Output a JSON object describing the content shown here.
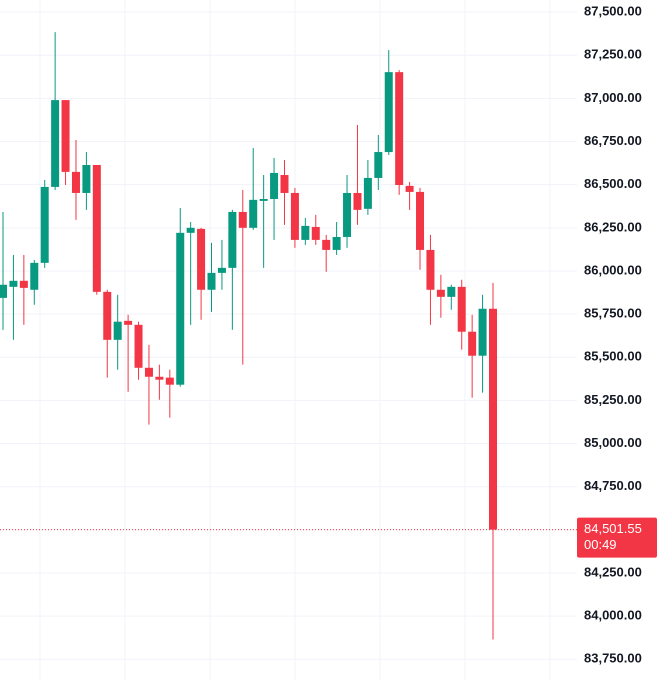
{
  "chart_data": {
    "type": "candlestick",
    "up_color": "#089981",
    "down_color": "#f23645",
    "open": [
      85844,
      85908,
      85943,
      85891,
      86047,
      86487,
      86990,
      86574,
      86452,
      86614,
      85879,
      85601,
      85711,
      85688,
      85439,
      85387,
      85382,
      85341,
      86221,
      86244,
      85891,
      85989,
      86018,
      86342,
      86250,
      86406,
      86417,
      86556,
      86452,
      86180,
      86255,
      86180,
      86122,
      86197,
      86452,
      86360,
      86539,
      86689,
      87152,
      86493,
      86458,
      86122,
      85891,
      85850,
      85908,
      85648,
      85509,
      85781
    ],
    "close": [
      85920,
      85943,
      85902,
      86047,
      86487,
      86990,
      86574,
      86452,
      86614,
      85879,
      85601,
      85706,
      85688,
      85439,
      85387,
      85370,
      85341,
      86221,
      86250,
      85891,
      85989,
      86018,
      86342,
      86250,
      86412,
      86417,
      86568,
      86452,
      86180,
      86261,
      86180,
      86122,
      86197,
      86452,
      86354,
      86539,
      86689,
      87152,
      86498,
      86458,
      86122,
      85891,
      85850,
      85908,
      85648,
      85509,
      85781,
      84501.55
    ],
    "high": [
      86342,
      86093,
      86093,
      86064,
      86527,
      87384,
      86990,
      86759,
      86689,
      86614,
      85891,
      85862,
      85746,
      85706,
      85572,
      85457,
      85428,
      86365,
      86284,
      86250,
      86163,
      86180,
      86354,
      86469,
      86713,
      86556,
      86655,
      86643,
      86481,
      86307,
      86325,
      86209,
      86284,
      86556,
      86846,
      86643,
      86788,
      87280,
      87164,
      86516,
      86481,
      86209,
      85978,
      85920,
      85949,
      85746,
      85862,
      85931
    ],
    "low": [
      85659,
      85601,
      85688,
      85804,
      86018,
      86469,
      86498,
      86296,
      86354,
      85862,
      85382,
      85428,
      85300,
      85370,
      85110,
      85254,
      85150,
      85329,
      85688,
      85717,
      85763,
      85891,
      85659,
      85457,
      86238,
      86018,
      86180,
      86267,
      86134,
      86151,
      86151,
      85995,
      86093,
      86134,
      86267,
      86325,
      86469,
      86672,
      86441,
      86354,
      86007,
      85688,
      85729,
      85775,
      85544,
      85266,
      85295,
      83865
    ],
    "ylim": [
      83630,
      87570
    ],
    "yticks": [
      {
        "value": 83750,
        "label": "83,750.00"
      },
      {
        "value": 84000,
        "label": "84,000.00"
      },
      {
        "value": 84250,
        "label": "84,250.00"
      },
      {
        "value": 84500,
        "label": "84,500.00"
      },
      {
        "value": 84750,
        "label": "84,750.00"
      },
      {
        "value": 85000,
        "label": "85,000.00"
      },
      {
        "value": 85250,
        "label": "85,250.00"
      },
      {
        "value": 85500,
        "label": "85,500.00"
      },
      {
        "value": 85750,
        "label": "85,750.00"
      },
      {
        "value": 86000,
        "label": "86,000.00"
      },
      {
        "value": 86250,
        "label": "86,250.00"
      },
      {
        "value": 86500,
        "label": "86,500.00"
      },
      {
        "value": 86750,
        "label": "86,750.00"
      },
      {
        "value": 87000,
        "label": "87,000.00"
      },
      {
        "value": 87250,
        "label": "87,250.00"
      },
      {
        "value": 87500,
        "label": "87,500.00"
      }
    ],
    "grid": true,
    "last_price": {
      "value": 84501.55,
      "label": "84,501.55"
    },
    "countdown": "00:49"
  }
}
